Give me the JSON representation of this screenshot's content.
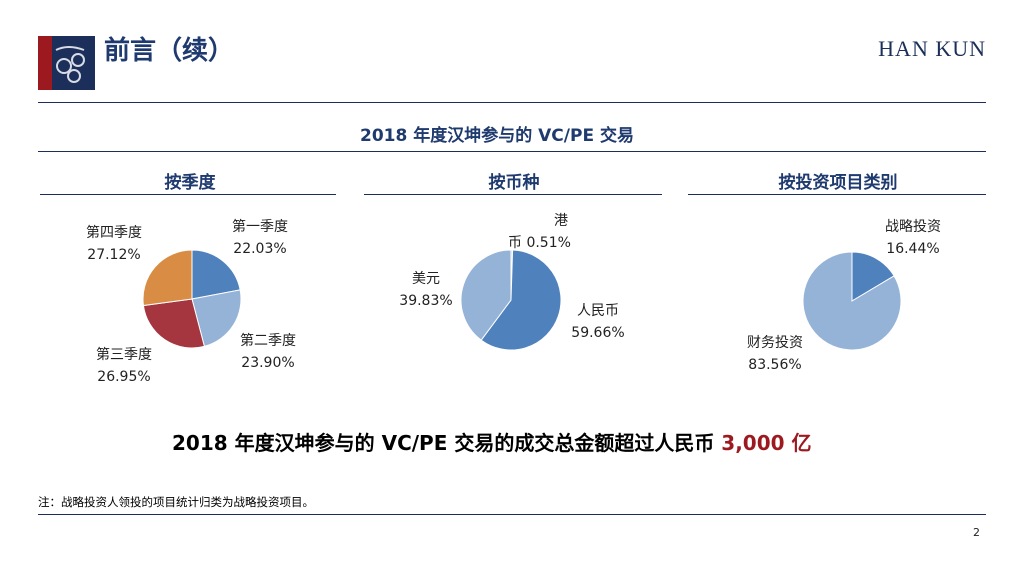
{
  "header": {
    "title": "前言（续）",
    "brand": "HAN KUN"
  },
  "subtitle": "2018 年度汉坤参与的 VC/PE 交易",
  "columns": [
    {
      "heading": "按季度"
    },
    {
      "heading": "按币种"
    },
    {
      "heading": "按投资项目类别"
    }
  ],
  "chart_data": [
    {
      "type": "pie",
      "title": "按季度",
      "slices": [
        {
          "label": "第一季度",
          "value": 22.03,
          "display": "22.03%",
          "color": "#4f81bd"
        },
        {
          "label": "第二季度",
          "value": 23.9,
          "display": "23.90%",
          "color": "#95b3d7"
        },
        {
          "label": "第三季度",
          "value": 26.95,
          "display": "26.95%",
          "color": "#a5353f"
        },
        {
          "label": "第四季度",
          "value": 27.12,
          "display": "27.12%",
          "color": "#d98c43"
        }
      ]
    },
    {
      "type": "pie",
      "title": "按币种",
      "slices": [
        {
          "label": "港币",
          "value": 0.51,
          "display": "0.51%",
          "color": "#c8d6ea"
        },
        {
          "label": "人民币",
          "value": 59.66,
          "display": "59.66%",
          "color": "#4f81bd"
        },
        {
          "label": "美元",
          "value": 39.83,
          "display": "39.83%",
          "color": "#95b3d7"
        }
      ]
    },
    {
      "type": "pie",
      "title": "按投资项目类别",
      "slices": [
        {
          "label": "战略投资",
          "value": 16.44,
          "display": "16.44%",
          "color": "#4f81bd"
        },
        {
          "label": "财务投资",
          "value": 83.56,
          "display": "83.56%",
          "color": "#95b3d7"
        }
      ]
    }
  ],
  "summary": {
    "text": "2018 年度汉坤参与的 VC/PE 交易的成交总金额超过人民币 ",
    "highlight": "3,000 亿"
  },
  "note": "注：战略投资人领投的项目统计归类为战略投资项目。",
  "page_number": "2"
}
